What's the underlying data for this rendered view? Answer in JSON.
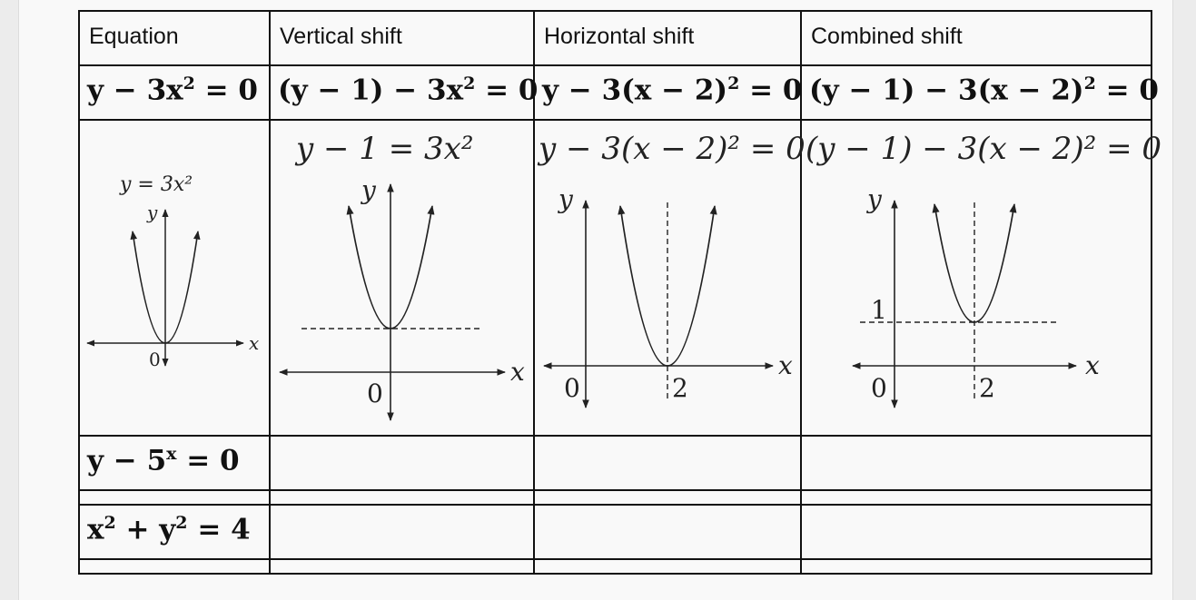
{
  "headers": [
    "Equation",
    "Vertical shift",
    "Horizontal shift",
    "Combined shift"
  ],
  "row1": {
    "equation": [
      "y − 3x",
      "2",
      " = 0"
    ],
    "vertical": [
      "(y − 1) − 3x",
      "2",
      " = 0"
    ],
    "horizontal": [
      "y − 3(x − 2)",
      "2",
      " = 0"
    ],
    "combined": [
      "(y − 1) − 3(x − 2)",
      "2",
      " = 0"
    ]
  },
  "graphs": {
    "base": {
      "label": "y = 3x²",
      "y_axis": "y",
      "x_axis": "x",
      "origin": "0"
    },
    "vertical": {
      "label": "y − 1 = 3x²",
      "y_axis": "y",
      "x_axis": "x",
      "origin": "0"
    },
    "horizontal": {
      "label": "y − 3(x − 2)² = 0",
      "y_axis": "y",
      "x_axis": "x",
      "origin": "0",
      "tick_x": "2"
    },
    "combined": {
      "label": "(y − 1) − 3(x − 2)² = 0",
      "y_axis": "y",
      "x_axis": "x",
      "origin": "0",
      "tick_x": "2",
      "tick_y": "1"
    }
  },
  "row3": {
    "equation": [
      "y − 5",
      "x",
      " = 0"
    ]
  },
  "row5": {
    "equation_a": "x",
    "equation_b": "2",
    "equation_c": " + y",
    "equation_d": "2",
    "equation_e": " = 4"
  }
}
